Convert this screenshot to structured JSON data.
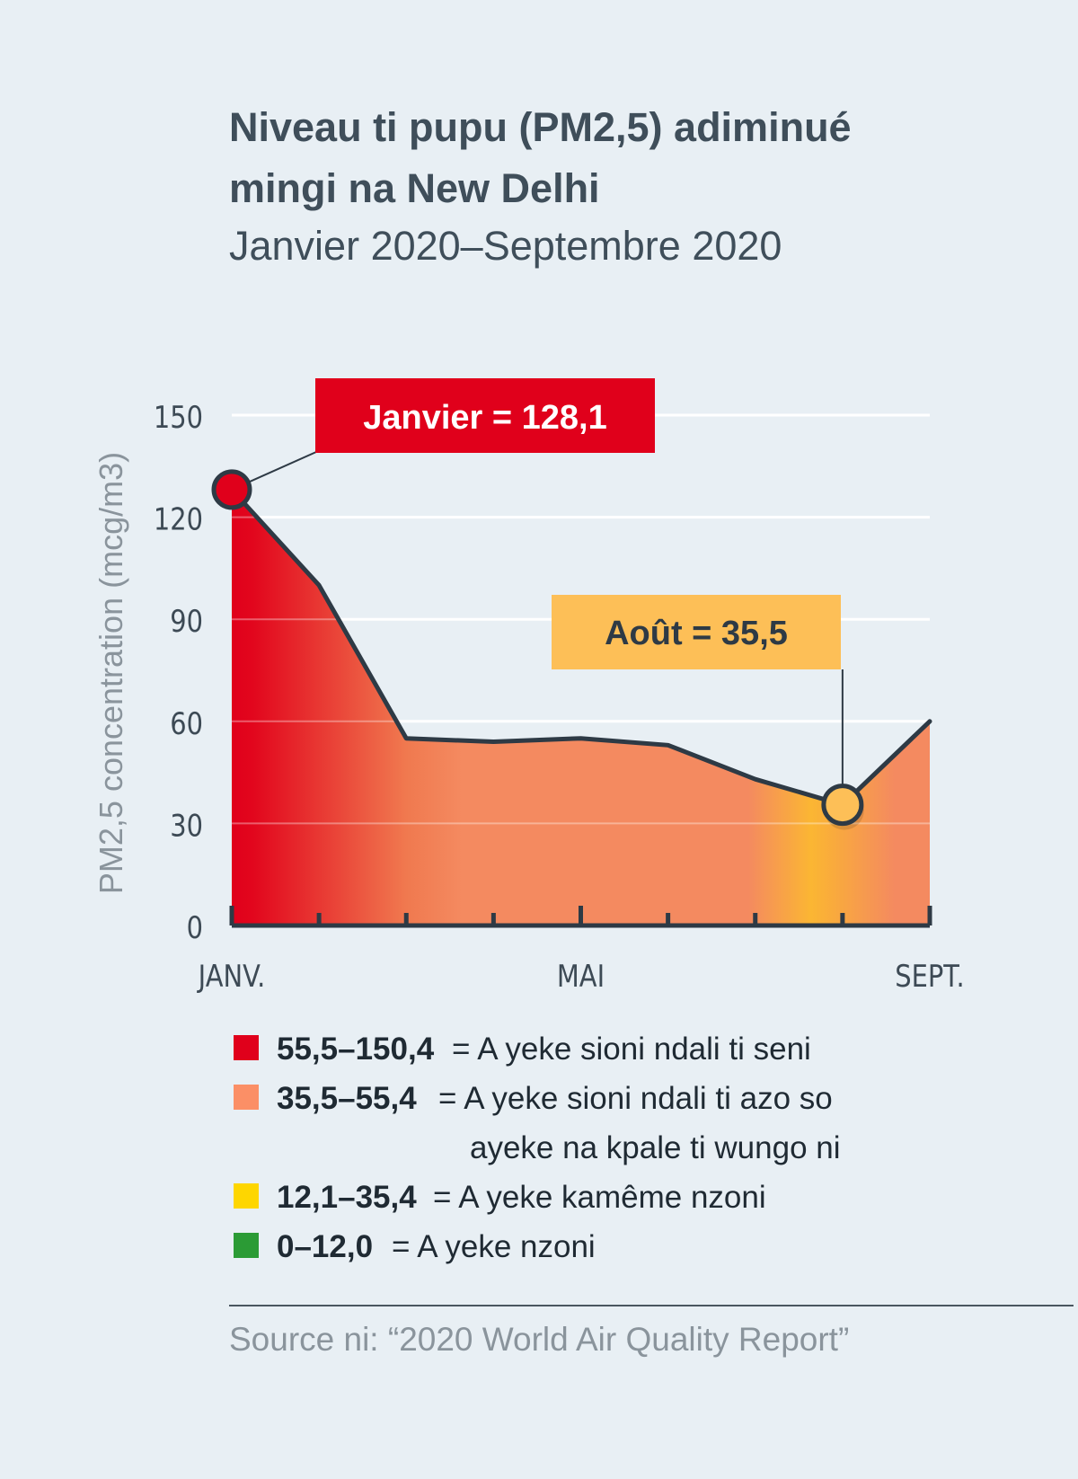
{
  "header": {
    "title_line1": "Niveau ti pupu (PM2,5) adiminué",
    "title_line2": "mingi na New Delhi",
    "subtitle": "Janvier 2020–Septembre 2020"
  },
  "chart_data": {
    "type": "area",
    "title": "Niveau ti pupu (PM2,5) adiminué mingi na New Delhi",
    "subtitle": "Janvier 2020–Septembre 2020",
    "ylabel": "PM2,5 concentration (mcg/m3)",
    "xlabel": "",
    "ylim": [
      0,
      150
    ],
    "yticks": [
      0,
      30,
      60,
      90,
      120,
      150
    ],
    "x": [
      "2020-01",
      "2020-02",
      "2020-03",
      "2020-04",
      "2020-05",
      "2020-06",
      "2020-07",
      "2020-08",
      "2020-09"
    ],
    "x_tick_labels": [
      {
        "x": "2020-01",
        "label": "JANV."
      },
      {
        "x": "2020-05",
        "label": "MAI"
      },
      {
        "x": "2020-09",
        "label": "SEPT."
      }
    ],
    "series": [
      {
        "values": [
          128.1,
          100,
          55,
          54,
          55,
          53,
          43,
          35.5,
          60
        ]
      }
    ],
    "annotations": [
      {
        "x": "2020-01",
        "value": 128.1,
        "label": "Janvier = 128,1",
        "color": "#e0001b"
      },
      {
        "x": "2020-08",
        "value": 35.5,
        "label": "Août = 35,5",
        "color": "#fdbf57"
      }
    ],
    "grid": true,
    "legend": [
      {
        "range": "55,5–150,4",
        "text": "= A yeke sioni ndali ti seni",
        "text_cont": "",
        "color": "#e0001b"
      },
      {
        "range": "35,5–55,4",
        "text": "= A yeke sioni ndali ti azo so",
        "text_cont": "ayeke na kpale ti wungo ni",
        "color": "#fb8f66"
      },
      {
        "range": "12,1–35,4",
        "text": "= A yeke kamême nzoni",
        "text_cont": "",
        "color": "#fed600"
      },
      {
        "range": "0–12,0",
        "text": "= A yeke nzoni",
        "text_cont": "",
        "color": "#2b9b35"
      }
    ]
  },
  "footer": {
    "source": "Source ni: “2020 World Air Quality Report”"
  },
  "colors": {
    "background": "#e8eff4",
    "line": "#2e3a45",
    "area_red": "#e0001b",
    "area_orange": "#f48a60",
    "area_yellow": "#fbb633"
  }
}
